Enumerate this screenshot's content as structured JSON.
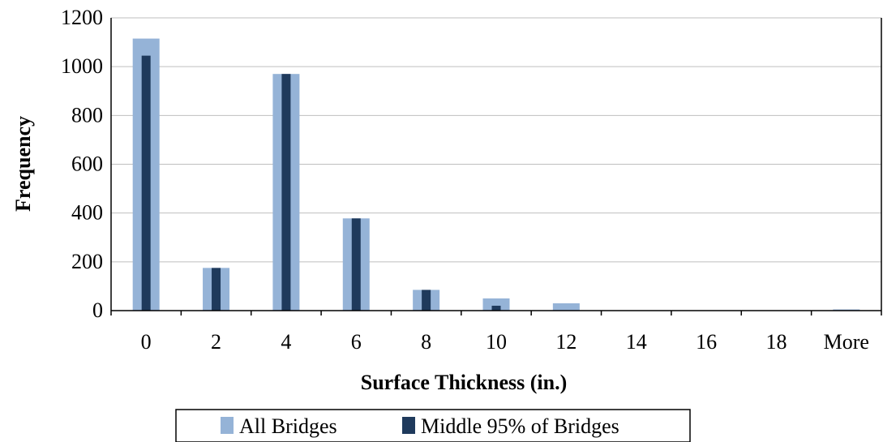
{
  "chart_data": {
    "type": "bar",
    "categories": [
      "0",
      "2",
      "4",
      "6",
      "8",
      "10",
      "12",
      "14",
      "16",
      "18",
      "More"
    ],
    "series": [
      {
        "name": "All Bridges",
        "color": "#95b3d7",
        "values": [
          1115,
          175,
          970,
          378,
          85,
          50,
          30,
          0,
          0,
          0,
          5
        ]
      },
      {
        "name": "Middle 95% of Bridges",
        "color": "#1f3a5c",
        "values": [
          1045,
          175,
          970,
          378,
          85,
          20,
          0,
          0,
          0,
          0,
          0
        ]
      }
    ],
    "xlabel": "Surface Thickness (in.)",
    "ylabel": "Frequency",
    "ylim": [
      0,
      1200
    ],
    "yticks": [
      0,
      200,
      400,
      600,
      800,
      1000,
      1200
    ],
    "grid": true,
    "legend_position": "bottom"
  }
}
